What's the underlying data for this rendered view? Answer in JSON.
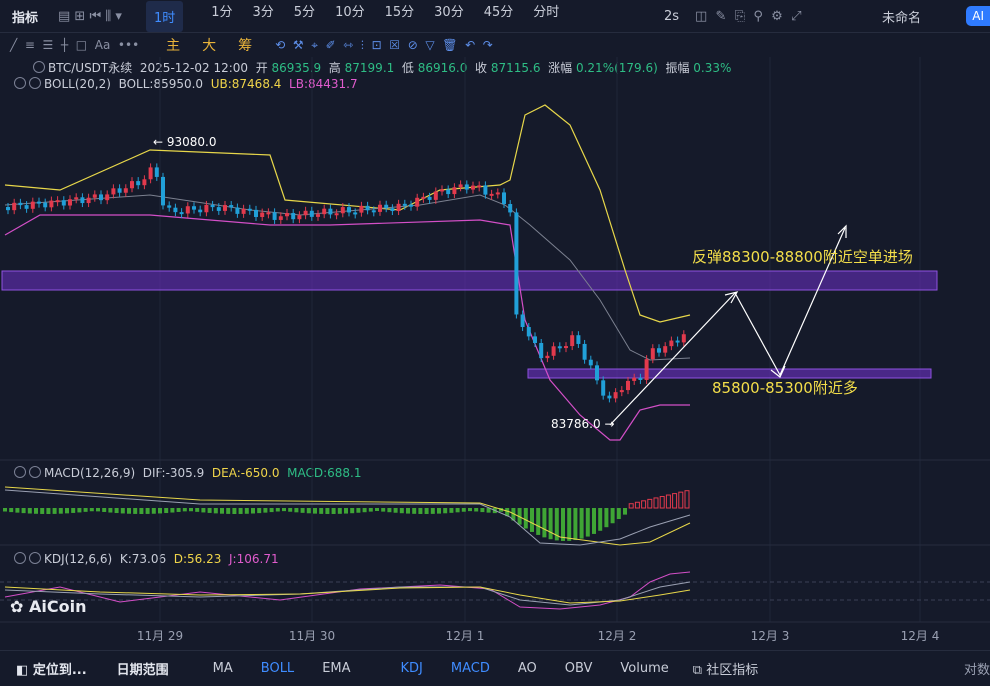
{
  "toolbar": {
    "indicator": "指标",
    "intervals": [
      "1时",
      "1分",
      "3分",
      "5分",
      "10分",
      "15分",
      "30分",
      "45分",
      "分时"
    ],
    "refresh": "2s",
    "layout_name": "未命名",
    "ai": "AI"
  },
  "draw_toolbar": {
    "labels": [
      "主",
      "大",
      "筹"
    ]
  },
  "info": {
    "symbol": "BTC/USDT永续",
    "time": "2025-12-02 12:00",
    "open_label": "开",
    "open": "86935.9",
    "high_label": "高",
    "high": "87199.1",
    "low_label": "低",
    "low": "86916.0",
    "close_label": "收",
    "close": "87115.6",
    "change_label": "涨幅",
    "change": "0.21%(179.6)",
    "amplitude_label": "振幅",
    "amplitude": "0.33%"
  },
  "boll": {
    "name": "BOLL(20,2)",
    "mid": "BOLL:85950.0",
    "ub": "UB:87468.4",
    "lb": "LB:84431.7"
  },
  "annotations": {
    "high": "← 93080.0",
    "low": "83786.0 →",
    "short_zone": "反弹88300-88800附近空单进场",
    "long_zone": "85800-85300附近多"
  },
  "macd": {
    "name": "MACD(12,26,9)",
    "dif": "DIF:-305.9",
    "dea": "DEA:-650.0",
    "macd": "MACD:688.1"
  },
  "kdj": {
    "name": "KDJ(12,6,6)",
    "k": "K:73.06",
    "d": "D:56.23",
    "j": "J:106.71"
  },
  "logo": "AiCoin",
  "x_axis": [
    "11月 29",
    "11月 30",
    "12月 1",
    "12月 2",
    "12月 3",
    "12月 4"
  ],
  "bottom_bar": {
    "locate": "定位到...",
    "date_range": "日期范围",
    "indicators": [
      "MA",
      "BOLL",
      "EMA",
      "KDJ",
      "MACD",
      "AO",
      "OBV",
      "Volume"
    ],
    "community": "社区指标",
    "log": "对数"
  }
}
